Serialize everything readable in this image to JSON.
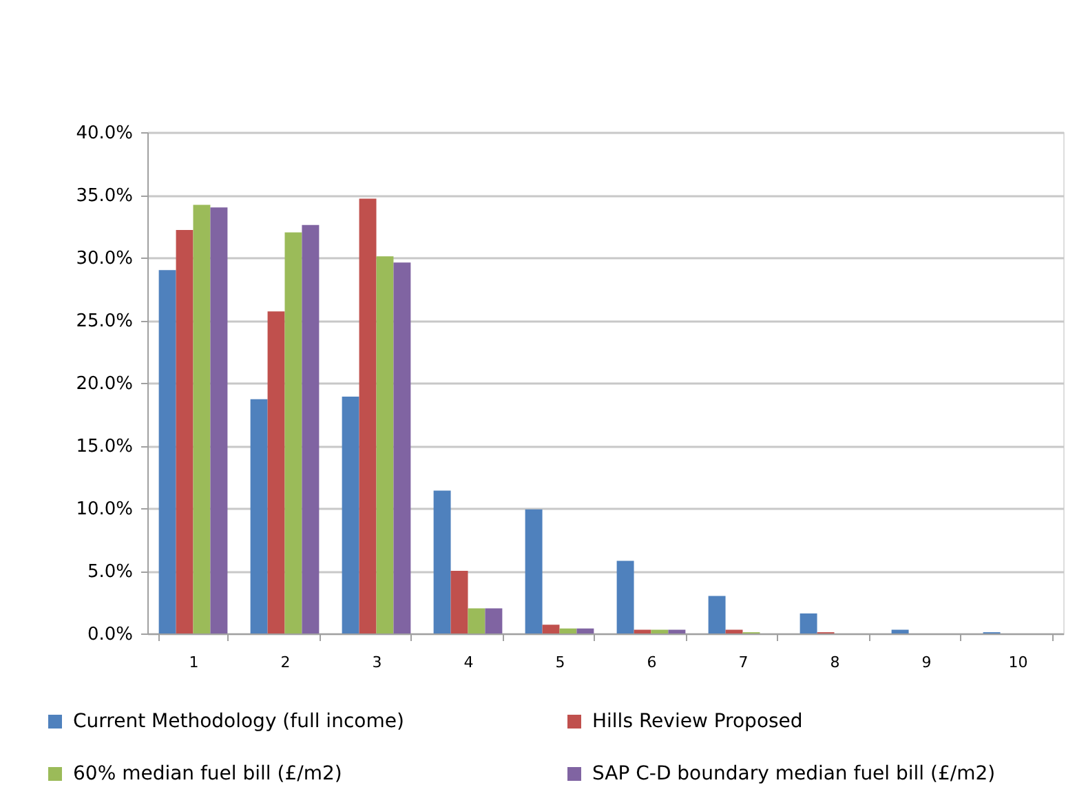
{
  "chart_data": {
    "type": "bar",
    "categories": [
      "1",
      "2",
      "3",
      "4",
      "5",
      "6",
      "7",
      "8",
      "9",
      "10"
    ],
    "series": [
      {
        "name": "Current Methodology (full income)",
        "color": "#4f81bd",
        "values": [
          29.0,
          18.7,
          18.9,
          11.4,
          9.9,
          5.8,
          3.0,
          1.6,
          0.3,
          0.1
        ]
      },
      {
        "name": "Hills Review Proposed",
        "color": "#c0504d",
        "values": [
          32.2,
          25.7,
          34.7,
          5.0,
          0.7,
          0.3,
          0.3,
          0.1,
          0,
          0
        ]
      },
      {
        "name": "60% median fuel bill (£/m2)",
        "color": "#9bbb59",
        "values": [
          34.2,
          32.0,
          30.1,
          2.0,
          0.4,
          0.3,
          0.1,
          0,
          0,
          0
        ]
      },
      {
        "name": "SAP C-D boundary median fuel bill (£/m2)",
        "color": "#8064a2",
        "values": [
          34.0,
          32.6,
          29.6,
          2.0,
          0.4,
          0.3,
          0,
          0,
          0,
          0
        ]
      }
    ],
    "ylim": [
      0,
      40
    ],
    "yticks": [
      {
        "value": 0,
        "label": "0.0%"
      },
      {
        "value": 5,
        "label": "5.0%"
      },
      {
        "value": 10,
        "label": "10.0%"
      },
      {
        "value": 15,
        "label": "15.0%"
      },
      {
        "value": 20,
        "label": "20.0%"
      },
      {
        "value": 25,
        "label": "25.0%"
      },
      {
        "value": 30,
        "label": "30.0%"
      },
      {
        "value": 35,
        "label": "35.0%"
      },
      {
        "value": 40,
        "label": "40.0%"
      }
    ],
    "grid": "y",
    "legend": "bottom"
  }
}
